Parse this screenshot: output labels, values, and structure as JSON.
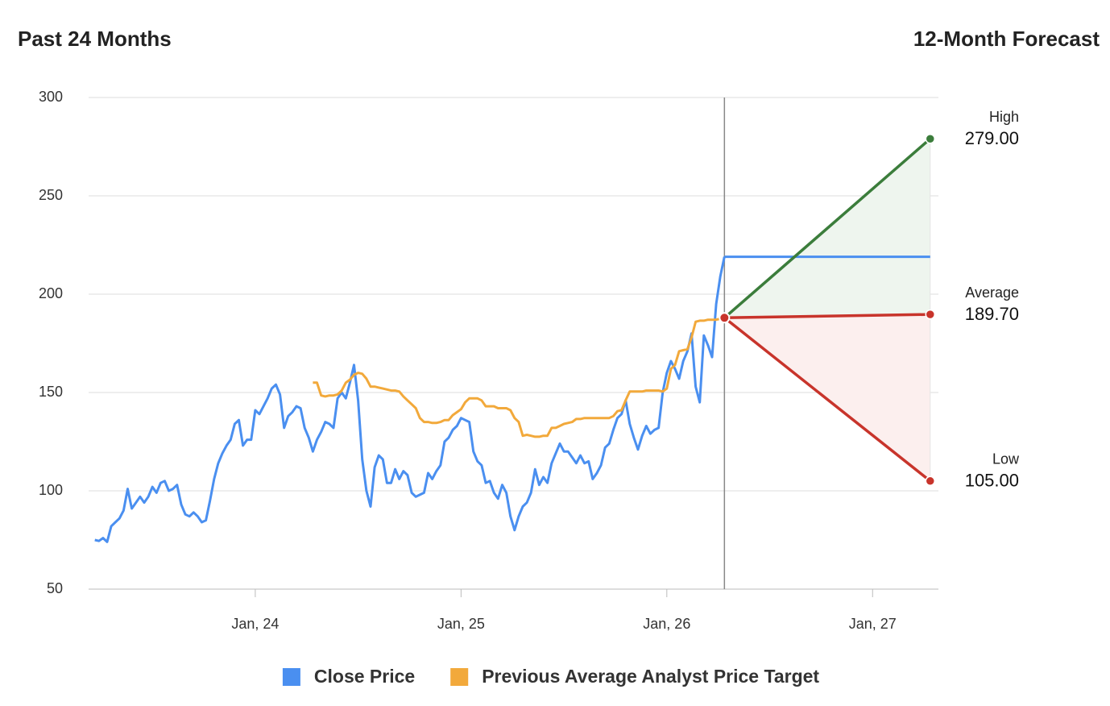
{
  "chart_data": {
    "type": "line",
    "title": "Past 24 Months",
    "subtitle": "12-Month Forecast",
    "xlim": [
      2023.19,
      2027.32
    ],
    "xticks": [
      {
        "value": 2024,
        "label": "Jan, 24"
      },
      {
        "value": 2025,
        "label": "Jan, 25"
      },
      {
        "value": 2026,
        "label": "Jan, 26"
      },
      {
        "value": 2027,
        "label": "Jan, 27"
      }
    ],
    "ylim": [
      50,
      300
    ],
    "yticks": [
      50,
      100,
      150,
      200,
      250,
      300
    ],
    "grid": true,
    "extend_last_close": true,
    "series": [
      {
        "name": "Close Price",
        "color": "#4a8ff0",
        "x": [
          2023.22,
          2023.24,
          2023.26,
          2023.28,
          2023.3,
          2023.32,
          2023.34,
          2023.36,
          2023.38,
          2023.4,
          2023.42,
          2023.44,
          2023.46,
          2023.48,
          2023.5,
          2023.52,
          2023.54,
          2023.56,
          2023.58,
          2023.6,
          2023.62,
          2023.64,
          2023.66,
          2023.68,
          2023.7,
          2023.72,
          2023.74,
          2023.76,
          2023.78,
          2023.8,
          2023.82,
          2023.84,
          2023.86,
          2023.88,
          2023.9,
          2023.92,
          2023.94,
          2023.96,
          2023.98,
          2024,
          2024.02,
          2024.04,
          2024.06,
          2024.08,
          2024.1,
          2024.12,
          2024.14,
          2024.16,
          2024.18,
          2024.2,
          2024.22,
          2024.24,
          2024.26,
          2024.28,
          2024.3,
          2024.32,
          2024.34,
          2024.36,
          2024.38,
          2024.4,
          2024.42,
          2024.44,
          2024.46,
          2024.48,
          2024.5,
          2024.52,
          2024.54,
          2024.56,
          2024.58,
          2024.6,
          2024.62,
          2024.64,
          2024.66,
          2024.68,
          2024.7,
          2024.72,
          2024.74,
          2024.76,
          2024.78,
          2024.8,
          2024.82,
          2024.84,
          2024.86,
          2024.88,
          2024.9,
          2024.92,
          2024.94,
          2024.96,
          2024.98,
          2025,
          2025.02,
          2025.04,
          2025.06,
          2025.08,
          2025.1,
          2025.12,
          2025.14,
          2025.16,
          2025.18,
          2025.2,
          2025.22,
          2025.24,
          2025.26,
          2025.28,
          2025.3,
          2025.32,
          2025.34,
          2025.36,
          2025.38,
          2025.4,
          2025.42,
          2025.44,
          2025.46,
          2025.48,
          2025.5,
          2025.52,
          2025.54,
          2025.56,
          2025.58,
          2025.6,
          2025.62,
          2025.64,
          2025.66,
          2025.68,
          2025.7,
          2025.72,
          2025.74,
          2025.76,
          2025.78,
          2025.8,
          2025.82,
          2025.84,
          2025.86,
          2025.88,
          2025.9,
          2025.92,
          2025.94,
          2025.96,
          2025.98,
          2026,
          2026.02,
          2026.04,
          2026.06,
          2026.08,
          2026.1,
          2026.12,
          2026.14,
          2026.16,
          2026.18,
          2026.2,
          2026.22,
          2026.24,
          2026.26,
          2026.28
        ],
        "values": [
          75,
          74.5,
          76,
          74,
          82,
          84,
          86,
          90,
          101,
          91,
          94,
          97,
          94,
          97,
          102,
          99,
          104,
          105,
          100,
          101,
          103,
          93,
          88,
          87,
          89,
          87,
          84,
          85,
          95,
          106,
          114,
          119,
          123,
          126,
          134,
          136,
          123,
          126,
          126,
          141,
          139,
          143,
          147,
          152,
          154,
          149,
          132,
          138,
          140,
          143,
          142,
          132,
          127,
          120,
          126,
          130,
          135,
          134,
          132,
          147,
          150,
          147,
          155,
          164,
          146,
          116,
          100,
          92,
          112,
          118,
          116,
          104,
          104,
          111,
          106,
          110,
          108,
          99,
          97,
          98,
          99,
          109,
          106,
          110,
          113,
          125,
          127,
          131,
          133,
          137,
          136,
          135,
          120,
          115,
          113,
          104,
          105,
          99,
          96,
          103,
          99,
          87,
          80,
          87,
          92,
          94,
          99,
          111,
          103,
          107,
          104,
          114,
          119,
          124,
          120,
          120,
          117,
          114,
          118,
          114,
          115,
          106,
          109,
          113,
          122,
          124,
          131,
          137,
          139,
          146,
          134,
          127,
          121,
          128,
          133,
          129,
          131,
          132,
          150,
          160,
          166,
          162,
          157,
          166,
          171,
          180,
          153,
          145,
          179,
          174,
          168,
          195,
          209,
          219
        ]
      },
      {
        "name": "Previous Average Analyst Price Target",
        "color": "#f2a93b",
        "x": [
          2024.28,
          2024.3,
          2024.32,
          2024.34,
          2024.36,
          2024.38,
          2024.4,
          2024.42,
          2024.44,
          2024.46,
          2024.48,
          2024.5,
          2024.52,
          2024.54,
          2024.56,
          2024.58,
          2024.6,
          2024.62,
          2024.64,
          2024.66,
          2024.68,
          2024.7,
          2024.72,
          2024.74,
          2024.76,
          2024.78,
          2024.8,
          2024.82,
          2024.84,
          2024.86,
          2024.88,
          2024.9,
          2024.92,
          2024.94,
          2024.96,
          2024.98,
          2025,
          2025.02,
          2025.04,
          2025.06,
          2025.08,
          2025.1,
          2025.12,
          2025.14,
          2025.16,
          2025.18,
          2025.2,
          2025.22,
          2025.24,
          2025.26,
          2025.28,
          2025.3,
          2025.32,
          2025.34,
          2025.36,
          2025.38,
          2025.4,
          2025.42,
          2025.44,
          2025.46,
          2025.48,
          2025.5,
          2025.52,
          2025.54,
          2025.56,
          2025.58,
          2025.6,
          2025.62,
          2025.64,
          2025.66,
          2025.68,
          2025.7,
          2025.72,
          2025.74,
          2025.76,
          2025.78,
          2025.8,
          2025.82,
          2025.84,
          2025.86,
          2025.88,
          2025.9,
          2025.92,
          2025.94,
          2025.96,
          2025.98,
          2026,
          2026.02,
          2026.04,
          2026.06,
          2026.08,
          2026.1,
          2026.12,
          2026.14,
          2026.16,
          2026.18,
          2026.2,
          2026.22,
          2026.24,
          2026.26,
          2026.28
        ],
        "values": [
          155,
          155,
          148.5,
          148,
          148.5,
          148.5,
          149,
          151,
          155,
          156.5,
          159,
          160,
          159.5,
          157,
          153,
          153,
          152.5,
          152,
          151.5,
          151,
          151,
          150.5,
          148,
          146,
          144,
          142,
          137,
          135,
          135,
          134.5,
          134.5,
          135,
          136,
          136,
          138.5,
          140,
          141.5,
          145,
          147,
          147,
          147,
          146,
          143,
          143,
          143,
          142,
          142,
          142,
          141,
          137,
          135,
          128,
          128.5,
          128,
          127.5,
          127.5,
          128,
          128,
          132,
          132,
          133,
          134,
          134.5,
          135,
          136.5,
          136.5,
          137,
          137,
          137,
          137,
          137,
          137,
          137,
          138,
          140.5,
          141,
          146,
          150.5,
          150.5,
          150.5,
          150.5,
          151,
          151,
          151,
          151,
          150.5,
          152,
          162,
          164,
          171,
          171.5,
          172,
          178,
          186,
          186.5,
          186.5,
          187,
          187,
          187,
          187.5,
          188
        ]
      }
    ],
    "forecast": {
      "x_start": 2026.28,
      "x_end": 2027.28,
      "start": 188,
      "labels": [
        "High",
        "Average",
        "Low"
      ],
      "values": [
        279,
        189.7,
        105
      ],
      "value_labels": [
        "279.00",
        "189.70",
        "105.00"
      ],
      "colors": [
        "#3b7d3b",
        "#c8342b",
        "#c8342b"
      ],
      "fills": [
        "#eef5ee",
        "#fcefee"
      ]
    }
  }
}
